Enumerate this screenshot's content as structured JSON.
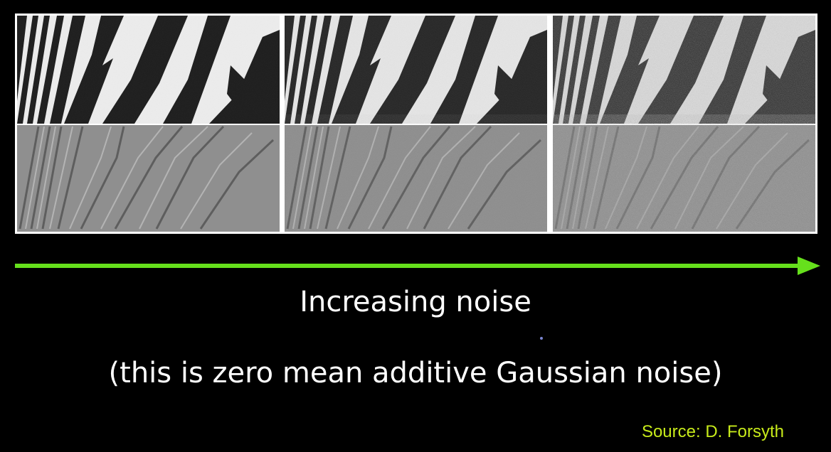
{
  "slide": {
    "caption_main": "Increasing noise",
    "caption_sub": "(this is zero mean additive Gaussian noise)",
    "source": "Source: D. Forsyth"
  },
  "panels": [
    {
      "name": "noise-level-1",
      "noise_order": 1
    },
    {
      "name": "noise-level-2",
      "noise_order": 2
    },
    {
      "name": "noise-level-3",
      "noise_order": 3
    }
  ],
  "colors": {
    "background": "#000000",
    "arrow": "#66e01c",
    "caption": "#ffffff",
    "source": "#c7ea1a",
    "panel_border": "#ffffff"
  }
}
